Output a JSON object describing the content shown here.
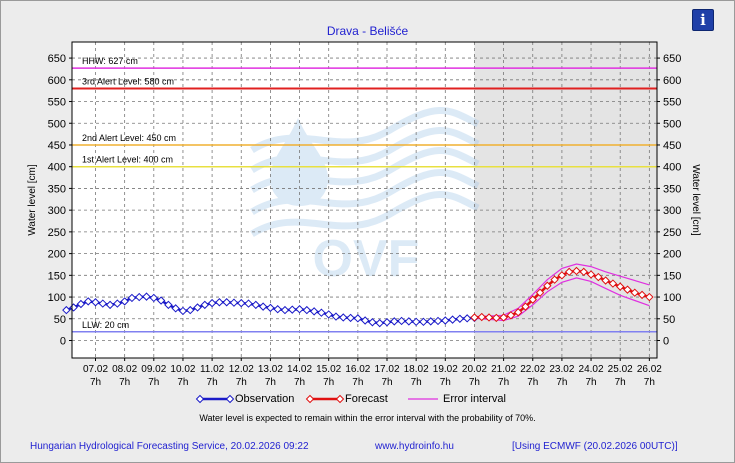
{
  "chart_data": {
    "type": "line",
    "title": "Drava - Belišće",
    "ylabel": "Water level [cm]",
    "ylabel_right": "Water level [cm]",
    "ylim": [
      -20,
      670
    ],
    "yticks": [
      0,
      50,
      100,
      150,
      200,
      250,
      300,
      350,
      400,
      450,
      500,
      550,
      600,
      650
    ],
    "x_ticks": [
      {
        "d": "07.02",
        "h": "7h"
      },
      {
        "d": "08.02",
        "h": "7h"
      },
      {
        "d": "09.02",
        "h": "7h"
      },
      {
        "d": "10.02",
        "h": "7h"
      },
      {
        "d": "11.02",
        "h": "7h"
      },
      {
        "d": "12.02",
        "h": "7h"
      },
      {
        "d": "13.02",
        "h": "7h"
      },
      {
        "d": "14.02",
        "h": "7h"
      },
      {
        "d": "15.02",
        "h": "7h"
      },
      {
        "d": "16.02",
        "h": "7h"
      },
      {
        "d": "17.02",
        "h": "7h"
      },
      {
        "d": "18.02",
        "h": "7h"
      },
      {
        "d": "19.02",
        "h": "7h"
      },
      {
        "d": "20.02",
        "h": "7h"
      },
      {
        "d": "21.02",
        "h": "7h"
      },
      {
        "d": "22.02",
        "h": "7h"
      },
      {
        "d": "23.02",
        "h": "7h"
      },
      {
        "d": "24.02",
        "h": "7h"
      },
      {
        "d": "25.02",
        "h": "7h"
      },
      {
        "d": "26.02",
        "h": "7h"
      }
    ],
    "reference_lines": [
      {
        "label": "HHW: 627 cm",
        "value": 627,
        "color": "#e030e0"
      },
      {
        "label": "3rd Alert Level: 580 cm",
        "value": 580,
        "color": "#e02020"
      },
      {
        "label": "2nd Alert Level: 450 cm",
        "value": 450,
        "color": "#f0b030"
      },
      {
        "label": "1st Alert Level: 400 cm",
        "value": 400,
        "color": "#e8e040"
      },
      {
        "label": "LLW: 20 cm",
        "value": 20,
        "color": "#8080f0"
      }
    ],
    "forecast_start": "20.02 7h",
    "series": [
      {
        "name": "Observation",
        "color": "#1a1ac8",
        "points": [
          [
            "06.02 7h",
            70
          ],
          [
            "06.02 13h",
            76
          ],
          [
            "06.02 19h",
            84
          ],
          [
            "07.02 1h",
            90
          ],
          [
            "07.02 7h",
            88
          ],
          [
            "07.02 13h",
            85
          ],
          [
            "07.02 19h",
            82
          ],
          [
            "08.02 1h",
            85
          ],
          [
            "08.02 7h",
            90
          ],
          [
            "08.02 13h",
            98
          ],
          [
            "08.02 19h",
            100
          ],
          [
            "09.02 1h",
            101
          ],
          [
            "09.02 7h",
            98
          ],
          [
            "09.02 13h",
            92
          ],
          [
            "09.02 19h",
            82
          ],
          [
            "10.02 1h",
            74
          ],
          [
            "10.02 7h",
            68
          ],
          [
            "10.02 13h",
            70
          ],
          [
            "10.02 19h",
            76
          ],
          [
            "11.02 1h",
            82
          ],
          [
            "11.02 7h",
            86
          ],
          [
            "11.02 13h",
            88
          ],
          [
            "11.02 19h",
            88
          ],
          [
            "12.02 1h",
            87
          ],
          [
            "12.02 7h",
            86
          ],
          [
            "12.02 13h",
            85
          ],
          [
            "12.02 19h",
            82
          ],
          [
            "13.02 1h",
            78
          ],
          [
            "13.02 7h",
            75
          ],
          [
            "13.02 13h",
            72
          ],
          [
            "13.02 19h",
            70
          ],
          [
            "14.02 1h",
            71
          ],
          [
            "14.02 7h",
            72
          ],
          [
            "14.02 13h",
            70
          ],
          [
            "14.02 19h",
            67
          ],
          [
            "15.02 1h",
            64
          ],
          [
            "15.02 7h",
            60
          ],
          [
            "15.02 13h",
            55
          ],
          [
            "15.02 19h",
            53
          ],
          [
            "16.02 1h",
            52
          ],
          [
            "16.02 7h",
            51
          ],
          [
            "16.02 13h",
            46
          ],
          [
            "16.02 19h",
            42
          ],
          [
            "17.02 1h",
            40
          ],
          [
            "17.02 7h",
            42
          ],
          [
            "17.02 13h",
            44
          ],
          [
            "17.02 19h",
            45
          ],
          [
            "18.02 1h",
            44
          ],
          [
            "18.02 7h",
            43
          ],
          [
            "18.02 13h",
            43
          ],
          [
            "18.02 19h",
            44
          ],
          [
            "19.02 1h",
            45
          ],
          [
            "19.02 7h",
            46
          ],
          [
            "19.02 13h",
            48
          ],
          [
            "19.02 19h",
            50
          ],
          [
            "20.02 1h",
            51
          ],
          [
            "20.02 7h",
            52
          ]
        ]
      },
      {
        "name": "Forecast",
        "color": "#e01010",
        "points": [
          [
            "20.02 7h",
            53
          ],
          [
            "20.02 13h",
            54
          ],
          [
            "20.02 19h",
            53
          ],
          [
            "21.02 1h",
            52
          ],
          [
            "21.02 7h",
            53
          ],
          [
            "21.02 13h",
            58
          ],
          [
            "21.02 19h",
            65
          ],
          [
            "22.02 1h",
            78
          ],
          [
            "22.02 7h",
            94
          ],
          [
            "22.02 13h",
            110
          ],
          [
            "22.02 19h",
            126
          ],
          [
            "23.02 1h",
            140
          ],
          [
            "23.02 7h",
            150
          ],
          [
            "23.02 13h",
            158
          ],
          [
            "23.02 19h",
            160
          ],
          [
            "24.02 1h",
            158
          ],
          [
            "24.02 7h",
            152
          ],
          [
            "24.02 13h",
            146
          ],
          [
            "24.02 19h",
            138
          ],
          [
            "25.02 1h",
            131
          ],
          [
            "25.02 7h",
            124
          ],
          [
            "25.02 13h",
            117
          ],
          [
            "25.02 19h",
            110
          ],
          [
            "26.02 1h",
            105
          ],
          [
            "26.02 7h",
            100
          ]
        ]
      },
      {
        "name": "Error interval",
        "color": "#e030e0",
        "upper": [
          [
            "20.02 7h",
            55
          ],
          [
            "21.02 7h",
            58
          ],
          [
            "21.02 19h",
            74
          ],
          [
            "22.02 7h",
            106
          ],
          [
            "22.02 19h",
            140
          ],
          [
            "23.02 7h",
            166
          ],
          [
            "23.02 19h",
            176
          ],
          [
            "24.02 7h",
            170
          ],
          [
            "24.02 19h",
            158
          ],
          [
            "25.02 7h",
            148
          ],
          [
            "26.02 7h",
            128
          ]
        ],
        "lower": [
          [
            "20.02 7h",
            51
          ],
          [
            "21.02 7h",
            46
          ],
          [
            "21.02 19h",
            56
          ],
          [
            "22.02 7h",
            82
          ],
          [
            "22.02 19h",
            112
          ],
          [
            "23.02 7h",
            134
          ],
          [
            "23.02 19h",
            144
          ],
          [
            "24.02 7h",
            136
          ],
          [
            "24.02 19h",
            120
          ],
          [
            "25.02 7h",
            104
          ],
          [
            "26.02 7h",
            80
          ]
        ]
      }
    ]
  },
  "legend": {
    "observation": "Observation",
    "forecast": "Forecast",
    "error": "Error interval"
  },
  "note": "Water level is expected to remain within the error interval with the probability of 70%.",
  "footer": {
    "left": "Hungarian Hydrological Forecasting Service, 20.02.2026 09:22",
    "mid": "www.hydroinfo.hu",
    "right": "[Using ECMWF (20.02.2026  00UTC)]"
  },
  "info_icon": "info-icon",
  "logo_text": "OVF"
}
